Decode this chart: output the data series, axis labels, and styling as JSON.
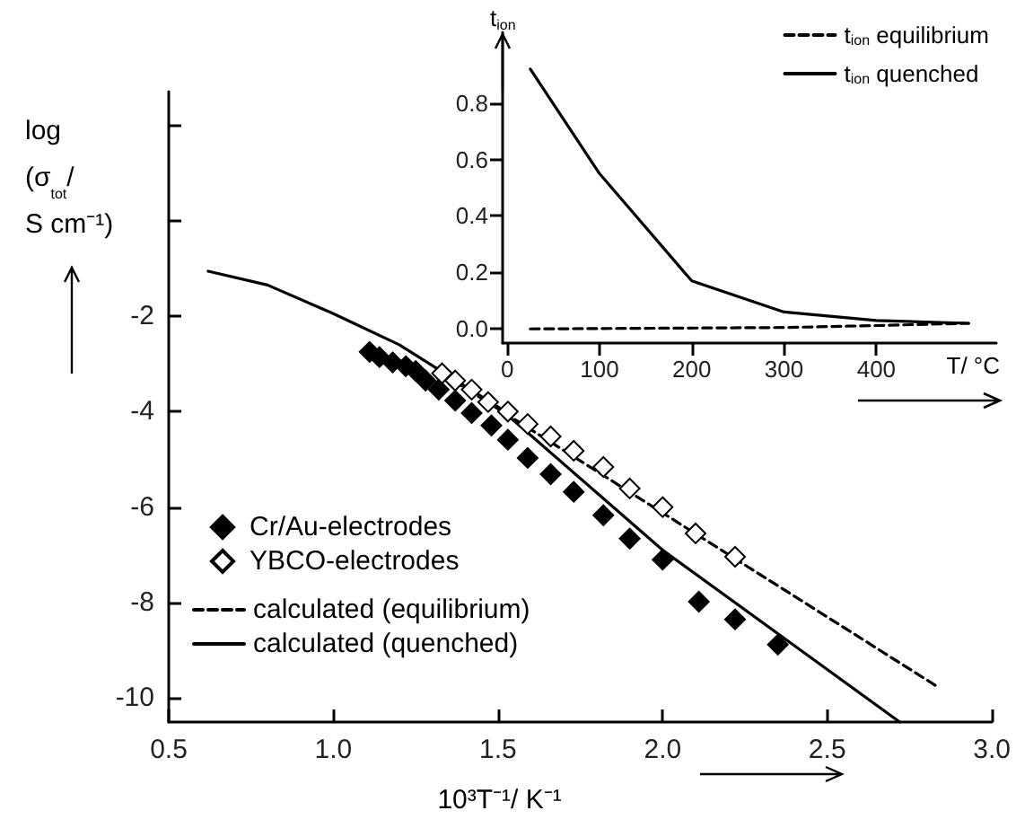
{
  "chart_data": [
    {
      "type": "scatter",
      "xlabel": "10³T⁻¹/ K⁻¹",
      "ylabel": "log (σ$_{tot}$/ S cm⁻¹)",
      "xlim": [
        0.5,
        3.0
      ],
      "ylim": [
        -10.5,
        2.7
      ],
      "xticks": [
        {
          "value": 0.5,
          "label": "0.5"
        },
        {
          "value": 1.0,
          "label": "1.0"
        },
        {
          "value": 1.5,
          "label": "1.5"
        },
        {
          "value": 2.0,
          "label": "2.0"
        },
        {
          "value": 2.5,
          "label": "2.5"
        },
        {
          "value": 3.0,
          "label": "3.0"
        }
      ],
      "yticks": [
        -10,
        -8,
        -6,
        -4,
        -2,
        {
          "value": 0,
          "label": null
        },
        {
          "value": 2,
          "label": null
        }
      ],
      "grid": false,
      "legend": "bottom left",
      "series": [
        {
          "name": "Cr/Au-electrodes",
          "type": "scatter",
          "marker": "diamond",
          "color": "#000000",
          "x": [
            1.11,
            1.14,
            1.18,
            1.22,
            1.25,
            1.28,
            1.32,
            1.37,
            1.42,
            1.48,
            1.53,
            1.59,
            1.66,
            1.73,
            1.82,
            1.9,
            2.0,
            2.11,
            2.22,
            2.35
          ],
          "values": [
            -2.75,
            -2.86,
            -2.97,
            -3.05,
            -3.15,
            -3.35,
            -3.54,
            -3.77,
            -4.03,
            -4.29,
            -4.59,
            -4.97,
            -5.31,
            -5.68,
            -6.17,
            -6.66,
            -7.1,
            -7.98,
            -8.35,
            -8.88
          ]
        },
        {
          "name": "YBCO-electrodes",
          "type": "scatter",
          "marker": "diamond",
          "color": "#ffffff",
          "x": [
            1.33,
            1.37,
            1.42,
            1.47,
            1.53,
            1.59,
            1.66,
            1.73,
            1.82,
            1.9,
            2.0,
            2.1,
            2.22
          ],
          "values": [
            -3.2,
            -3.35,
            -3.54,
            -3.8,
            -4.0,
            -4.26,
            -4.52,
            -4.82,
            -5.16,
            -5.61,
            -6.0,
            -6.55,
            -7.04
          ]
        },
        {
          "name": "calculated (equilibrium)",
          "type": "line",
          "marker": "none",
          "line_style": "dashed",
          "color": "#000000",
          "x": [
            1.33,
            2.83
          ],
          "values": [
            -3.2,
            -9.74
          ]
        },
        {
          "name": "calculated (quenched)",
          "type": "line",
          "marker": "none",
          "line_style": "solid",
          "color": "#000000",
          "x": [
            0.62,
            0.8,
            1.0,
            1.2,
            1.5,
            2.0,
            2.5,
            2.72
          ],
          "values": [
            -1.06,
            -1.35,
            -1.95,
            -2.6,
            -3.9,
            -6.9,
            -9.4,
            -10.5
          ]
        }
      ]
    },
    {
      "type": "line",
      "xlabel": "T/ °C",
      "ylabel": "t$_{ion}$",
      "xlim": [
        -5,
        530
      ],
      "ylim": [
        -0.05,
        1.05
      ],
      "xticks": [
        0,
        100,
        200,
        300,
        400
      ],
      "yticks": [
        {
          "value": 0,
          "label": "0.0"
        },
        {
          "value": 0.2,
          "label": "0.2"
        },
        {
          "value": 0.4,
          "label": "0.4"
        },
        {
          "value": 0.6,
          "label": "0.6"
        },
        {
          "value": 0.8,
          "label": "0.8"
        }
      ],
      "grid": false,
      "legend": "top right",
      "marker": "none",
      "series": [
        {
          "name": "t$_{ion}$ equilibrium",
          "line_style": "dashed",
          "color": "#000000",
          "x": [
            25,
            300,
            400,
            500
          ],
          "values": [
            0.0,
            0.005,
            0.012,
            0.02
          ]
        },
        {
          "name": "t$_{ion}$ quenched",
          "line_style": "solid",
          "color": "#000000",
          "x": [
            25,
            100,
            200,
            300,
            400,
            500
          ],
          "values": [
            0.92,
            0.55,
            0.17,
            0.06,
            0.03,
            0.02
          ]
        }
      ]
    }
  ]
}
